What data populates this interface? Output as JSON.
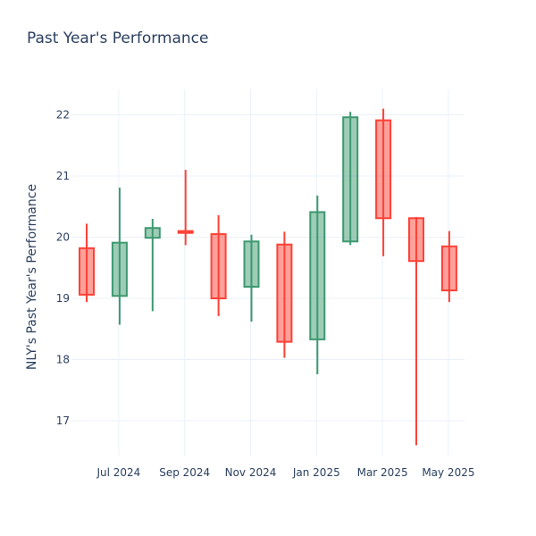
{
  "chart_data": {
    "type": "candlestick",
    "title": "Past Year's Performance",
    "ylabel": "NLY's Past Year's Performance",
    "xlabel": "",
    "ylim": [
      16.4,
      22.4
    ],
    "yticks": [
      17,
      18,
      19,
      20,
      21,
      22
    ],
    "xtick_labels": [
      "Jul 2024",
      "Sep 2024",
      "Nov 2024",
      "Jan 2025",
      "Mar 2025",
      "May 2025"
    ],
    "grid": true,
    "increasing_color": "#3d9970",
    "decreasing_color": "#ff4136",
    "candles": [
      {
        "period": "2024-06",
        "open": 19.82,
        "high": 20.22,
        "low": 18.94,
        "close": 19.06
      },
      {
        "period": "2024-07",
        "open": 19.04,
        "high": 20.81,
        "low": 18.57,
        "close": 19.91
      },
      {
        "period": "2024-08",
        "open": 19.99,
        "high": 20.3,
        "low": 18.79,
        "close": 20.15
      },
      {
        "period": "2024-09",
        "open": 20.1,
        "high": 21.1,
        "low": 19.87,
        "close": 20.07
      },
      {
        "period": "2024-10",
        "open": 20.05,
        "high": 20.36,
        "low": 18.71,
        "close": 19.0
      },
      {
        "period": "2024-11",
        "open": 19.19,
        "high": 20.04,
        "low": 18.62,
        "close": 19.93
      },
      {
        "period": "2024-12",
        "open": 19.88,
        "high": 20.09,
        "low": 18.03,
        "close": 18.29
      },
      {
        "period": "2025-01",
        "open": 18.33,
        "high": 20.68,
        "low": 17.76,
        "close": 20.41
      },
      {
        "period": "2025-02",
        "open": 19.93,
        "high": 22.05,
        "low": 19.87,
        "close": 21.96
      },
      {
        "period": "2025-03",
        "open": 21.91,
        "high": 22.1,
        "low": 19.69,
        "close": 20.31
      },
      {
        "period": "2025-04",
        "open": 20.31,
        "high": 20.33,
        "low": 16.6,
        "close": 19.61
      },
      {
        "period": "2025-05",
        "open": 19.85,
        "high": 20.1,
        "low": 18.94,
        "close": 19.13
      }
    ]
  }
}
